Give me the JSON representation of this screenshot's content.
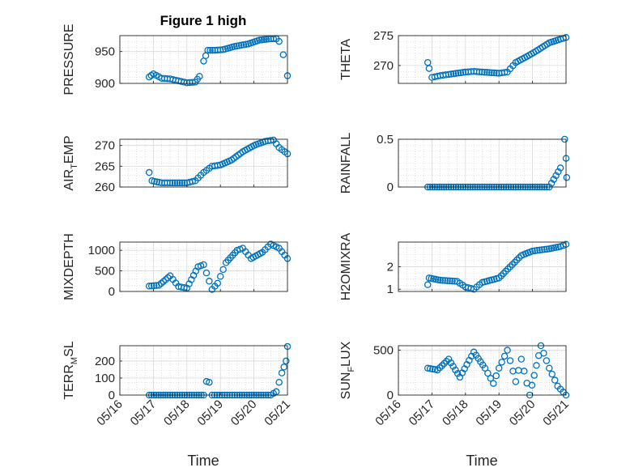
{
  "figure": {
    "title": "Figure 1 high"
  },
  "colors": {
    "marker": "#0072BD",
    "axis": "#262626",
    "grid": "#cccccc"
  },
  "chart_data": [
    {
      "type": "scatter",
      "ylabel": "PRESSURE",
      "title": "Figure 1 high",
      "yticks": [
        900,
        950
      ],
      "ylim": [
        900,
        975
      ],
      "xlim": [
        "05/16",
        "05/21"
      ],
      "grid": true,
      "marker": "circle-open",
      "points": [
        [
          "05/16 21:00",
          910
        ],
        [
          "05/17 00:00",
          915
        ],
        [
          "05/17 06:00",
          908
        ],
        [
          "05/17 12:00",
          907
        ],
        [
          "05/17 18:00",
          904
        ],
        [
          "05/18 00:00",
          901
        ],
        [
          "05/18 06:00",
          902
        ],
        [
          "05/18 09:00",
          911
        ],
        [
          "05/18 12:00",
          935
        ],
        [
          "05/18 15:00",
          952
        ],
        [
          "05/18 20:00",
          952
        ],
        [
          "05/19 02:00",
          953
        ],
        [
          "05/19 10:00",
          958
        ],
        [
          "05/19 20:00",
          962
        ],
        [
          "05/20 04:00",
          968
        ],
        [
          "05/20 12:00",
          970
        ],
        [
          "05/20 16:00",
          970
        ],
        [
          "05/20 18:00",
          966
        ],
        [
          "05/20 21:00",
          945
        ],
        [
          "05/21 00:00",
          912
        ]
      ]
    },
    {
      "type": "scatter",
      "ylabel": "THETA",
      "yticks": [
        270,
        275
      ],
      "ylim": [
        267,
        275
      ],
      "xlim": [
        "05/16",
        "05/21"
      ],
      "grid": true,
      "marker": "circle-open",
      "points": [
        [
          "05/16 21:00",
          270.5
        ],
        [
          "05/16 22:00",
          269.5
        ],
        [
          "05/17 00:00",
          268.0
        ],
        [
          "05/17 06:00",
          268.3
        ],
        [
          "05/17 12:00",
          268.5
        ],
        [
          "05/18 00:00",
          268.9
        ],
        [
          "05/18 06:00",
          269.0
        ],
        [
          "05/18 12:00",
          268.9
        ],
        [
          "05/19 00:00",
          268.7
        ],
        [
          "05/19 06:00",
          268.9
        ],
        [
          "05/19 12:00",
          270.5
        ],
        [
          "05/19 20:00",
          271.5
        ],
        [
          "05/20 04:00",
          272.6
        ],
        [
          "05/20 12:00",
          273.8
        ],
        [
          "05/20 20:00",
          274.4
        ],
        [
          "05/21 00:00",
          274.7
        ]
      ]
    },
    {
      "type": "scatter",
      "ylabel": "AIR_TEMP",
      "yticks": [
        260,
        265,
        270
      ],
      "ylim": [
        260,
        271.5
      ],
      "xlim": [
        "05/16",
        "05/21"
      ],
      "grid": true,
      "marker": "circle-open",
      "points": [
        [
          "05/16 21:00",
          263.5
        ],
        [
          "05/16 23:00",
          261.5
        ],
        [
          "05/17 06:00",
          261.0
        ],
        [
          "05/17 12:00",
          261.0
        ],
        [
          "05/18 00:00",
          261.0
        ],
        [
          "05/18 06:00",
          261.5
        ],
        [
          "05/18 12:00",
          263.5
        ],
        [
          "05/18 18:00",
          265.0
        ],
        [
          "05/19 00:00",
          265.3
        ],
        [
          "05/19 08:00",
          266.5
        ],
        [
          "05/19 16:00",
          268.5
        ],
        [
          "05/20 00:00",
          270.0
        ],
        [
          "05/20 08:00",
          271.0
        ],
        [
          "05/20 14:00",
          271.3
        ],
        [
          "05/20 18:00",
          269.5
        ],
        [
          "05/21 00:00",
          268.0
        ]
      ]
    },
    {
      "type": "scatter",
      "ylabel": "RAINFALL",
      "yticks": [
        0,
        0.5
      ],
      "ylim": [
        0,
        0.5
      ],
      "xlim": [
        "05/16",
        "05/21"
      ],
      "grid": true,
      "marker": "circle-open",
      "points": [
        [
          "05/16 21:00",
          0
        ],
        [
          "05/17 12:00",
          0
        ],
        [
          "05/18 12:00",
          0
        ],
        [
          "05/19 12:00",
          0
        ],
        [
          "05/20 12:00",
          0
        ],
        [
          "05/20 20:00",
          0.2
        ],
        [
          "05/20 23:00",
          0.5
        ],
        [
          "05/21 00:00",
          0.3
        ],
        [
          "05/21 00:30",
          0.1
        ]
      ]
    },
    {
      "type": "scatter",
      "ylabel": "MIXDEPTH",
      "yticks": [
        0,
        500,
        1000
      ],
      "ylim": [
        0,
        1200
      ],
      "xlim": [
        "05/16",
        "05/21"
      ],
      "grid": true,
      "marker": "circle-open",
      "points": [
        [
          "05/16 21:00",
          130
        ],
        [
          "05/17 04:00",
          150
        ],
        [
          "05/17 12:00",
          380
        ],
        [
          "05/17 18:00",
          120
        ],
        [
          "05/18 00:00",
          80
        ],
        [
          "05/18 08:00",
          600
        ],
        [
          "05/18 12:00",
          650
        ],
        [
          "05/18 18:00",
          50
        ],
        [
          "05/18 22:00",
          200
        ],
        [
          "05/19 04:00",
          700
        ],
        [
          "05/19 12:00",
          1000
        ],
        [
          "05/19 16:00",
          1050
        ],
        [
          "05/19 22:00",
          800
        ],
        [
          "05/20 06:00",
          950
        ],
        [
          "05/20 12:00",
          1150
        ],
        [
          "05/20 18:00",
          1050
        ],
        [
          "05/21 00:00",
          800
        ]
      ]
    },
    {
      "type": "scatter",
      "ylabel": "H2OMIXRA",
      "yticks": [
        1,
        2
      ],
      "ylim": [
        0.9,
        3.1
      ],
      "xlim": [
        "05/16",
        "05/21"
      ],
      "grid": true,
      "marker": "circle-open",
      "points": [
        [
          "05/16 21:00",
          1.2
        ],
        [
          "05/16 22:00",
          1.5
        ],
        [
          "05/17 06:00",
          1.4
        ],
        [
          "05/17 18:00",
          1.35
        ],
        [
          "05/18 00:00",
          1.1
        ],
        [
          "05/18 06:00",
          1.0
        ],
        [
          "05/18 12:00",
          1.3
        ],
        [
          "05/19 00:00",
          1.5
        ],
        [
          "05/19 08:00",
          2.0
        ],
        [
          "05/19 16:00",
          2.5
        ],
        [
          "05/20 00:00",
          2.7
        ],
        [
          "05/20 12:00",
          2.8
        ],
        [
          "05/20 20:00",
          2.9
        ],
        [
          "05/21 00:00",
          3.0
        ]
      ]
    },
    {
      "type": "scatter",
      "ylabel": "TERR_MSL",
      "yticks": [
        0,
        100,
        200
      ],
      "ylim": [
        0,
        290
      ],
      "xlim": [
        "05/16",
        "05/21"
      ],
      "grid": true,
      "marker": "circle-open",
      "points": [
        [
          "05/16 21:00",
          0
        ],
        [
          "05/17 12:00",
          0
        ],
        [
          "05/18 12:00",
          0
        ],
        [
          "05/18 14:00",
          80
        ],
        [
          "05/18 16:00",
          75
        ],
        [
          "05/18 18:00",
          0
        ],
        [
          "05/19 12:00",
          0
        ],
        [
          "05/20 12:00",
          0
        ],
        [
          "05/20 16:00",
          20
        ],
        [
          "05/20 20:00",
          130
        ],
        [
          "05/20 23:00",
          200
        ],
        [
          "05/21 00:00",
          285
        ]
      ]
    },
    {
      "type": "scatter",
      "ylabel": "SUN_FLUX",
      "yticks": [
        0,
        500
      ],
      "ylim": [
        0,
        550
      ],
      "xlim": [
        "05/16",
        "05/21"
      ],
      "grid": true,
      "marker": "circle-open",
      "points": [
        [
          "05/16 21:00",
          300
        ],
        [
          "05/17 04:00",
          280
        ],
        [
          "05/17 12:00",
          400
        ],
        [
          "05/17 20:00",
          200
        ],
        [
          "05/18 06:00",
          480
        ],
        [
          "05/18 14:00",
          300
        ],
        [
          "05/18 20:00",
          130
        ],
        [
          "05/19 00:00",
          300
        ],
        [
          "05/19 06:00",
          500
        ],
        [
          "05/19 12:00",
          150
        ],
        [
          "05/19 16:00",
          400
        ],
        [
          "05/19 22:00",
          0
        ],
        [
          "05/20 06:00",
          550
        ],
        [
          "05/20 12:00",
          300
        ],
        [
          "05/20 18:00",
          100
        ],
        [
          "05/21 00:00",
          0
        ]
      ]
    }
  ],
  "shared_x": {
    "xlabel": "Time",
    "xticks": [
      "05/16",
      "05/17",
      "05/18",
      "05/19",
      "05/20",
      "05/21"
    ]
  }
}
